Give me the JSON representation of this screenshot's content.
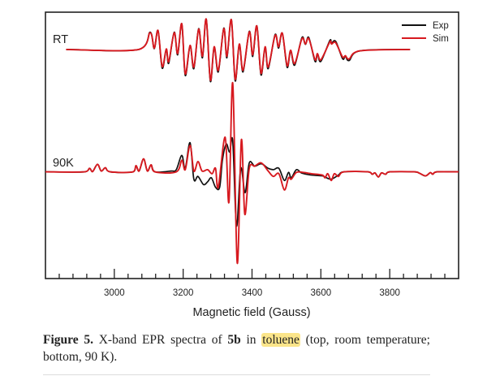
{
  "chart_data": {
    "type": "line",
    "title": "",
    "xlabel": "Magnetic field (Gauss)",
    "ylabel": "",
    "xlim": [
      2800,
      4000
    ],
    "ylim": [
      -3.95,
      5.91
    ],
    "xticks": [
      3000,
      3200,
      3400,
      3600,
      3800
    ],
    "minor_tick_step": 40,
    "minor_tick_start": 2840,
    "grid": false,
    "legend": {
      "placement": "top-right",
      "entries": [
        {
          "name": "Exp",
          "color": "#111111"
        },
        {
          "name": "Sim",
          "color": "#d7191f"
        }
      ]
    },
    "annotations": [
      {
        "text": "RT",
        "x": 2822,
        "y": 5.0
      },
      {
        "text": "90K",
        "x": 2822,
        "y": 0.45
      }
    ],
    "series": [
      {
        "name": "Exp",
        "trace": "RT",
        "color": "#111111",
        "x": [
          2860,
          3071,
          3104,
          3116,
          3127,
          3139,
          3151,
          3158,
          3174,
          3184,
          3196,
          3206,
          3220,
          3231,
          3245,
          3256,
          3267,
          3279,
          3290,
          3302,
          3318,
          3327,
          3340,
          3351,
          3363,
          3374,
          3392,
          3402,
          3414,
          3426,
          3438,
          3447,
          3467,
          3477,
          3488,
          3502,
          3512,
          3524,
          3545,
          3555,
          3565,
          3583,
          3590,
          3600,
          3626,
          3631,
          3643,
          3663,
          3671,
          3682,
          3714,
          3859
        ],
        "y": [
          4.53,
          4.53,
          5.17,
          4.56,
          5.23,
          3.84,
          4.53,
          4.02,
          5.17,
          4.33,
          5.48,
          3.57,
          4.66,
          3.82,
          5.3,
          4.22,
          5.65,
          3.35,
          4.61,
          3.7,
          5.32,
          4.22,
          5.63,
          3.37,
          4.71,
          3.7,
          5.2,
          4.27,
          5.4,
          3.59,
          4.61,
          3.82,
          5.08,
          4.58,
          5.13,
          3.87,
          4.47,
          3.95,
          4.97,
          4.72,
          4.97,
          4.09,
          4.36,
          4.09,
          4.86,
          4.76,
          4.83,
          4.19,
          4.28,
          4.12,
          4.48,
          4.53
        ]
      },
      {
        "name": "Sim",
        "trace": "RT",
        "color": "#d7191f",
        "x": [
          2860,
          3071,
          3104,
          3116,
          3127,
          3139,
          3151,
          3158,
          3174,
          3184,
          3196,
          3206,
          3220,
          3231,
          3245,
          3256,
          3267,
          3279,
          3290,
          3302,
          3318,
          3327,
          3340,
          3351,
          3363,
          3374,
          3392,
          3402,
          3414,
          3426,
          3438,
          3447,
          3467,
          3477,
          3488,
          3502,
          3512,
          3524,
          3545,
          3555,
          3565,
          3583,
          3590,
          3600,
          3626,
          3631,
          3643,
          3663,
          3671,
          3682,
          3714,
          3859
        ],
        "y": [
          4.53,
          4.53,
          5.15,
          4.58,
          5.23,
          3.9,
          4.55,
          4.08,
          5.15,
          4.38,
          5.48,
          3.63,
          4.68,
          3.88,
          5.28,
          4.28,
          5.65,
          3.4,
          4.63,
          3.76,
          5.3,
          4.28,
          5.63,
          3.43,
          4.73,
          3.76,
          5.18,
          4.33,
          5.4,
          3.65,
          4.63,
          3.88,
          5.05,
          4.63,
          5.13,
          3.93,
          4.5,
          4.01,
          4.93,
          4.73,
          4.93,
          4.15,
          4.38,
          4.15,
          4.81,
          4.73,
          4.78,
          4.25,
          4.3,
          4.18,
          4.48,
          4.53
        ]
      },
      {
        "name": "Exp",
        "trace": "90K",
        "color": "#111111",
        "x": [
          2800,
          2914,
          2928,
          2937,
          2951,
          2962,
          2974,
          2988,
          3055,
          3063,
          3072,
          3085,
          3096,
          3107,
          3118,
          3165,
          3180,
          3196,
          3206,
          3220,
          3231,
          3243,
          3259,
          3271,
          3282,
          3294,
          3306,
          3314,
          3325,
          3335,
          3344,
          3355,
          3367,
          3380,
          3392,
          3408,
          3427,
          3447,
          3462,
          3478,
          3494,
          3506,
          3514,
          3529,
          3545,
          3573,
          3604,
          3612,
          3630,
          3651,
          3667,
          3737,
          3749,
          3757,
          3767,
          3776,
          3788,
          3800,
          3871,
          3886,
          3904,
          3918,
          3925,
          3937,
          4000
        ],
        "y": [
          0,
          0,
          0.13,
          0.01,
          0.28,
          0.03,
          0.15,
          0,
          0,
          0.23,
          0.03,
          0.48,
          0.03,
          0.26,
          0,
          0.03,
          0.08,
          0.61,
          0.13,
          1.08,
          -0.27,
          -0.17,
          -0.47,
          -0.37,
          -0.22,
          -0.57,
          -0.57,
          0.43,
          1.03,
          0.73,
          1.13,
          -2.0,
          0.13,
          -0.77,
          0.33,
          0.21,
          0.3,
          0.13,
          0.08,
          0.13,
          -0.32,
          -0.02,
          -0.22,
          0.08,
          -0.05,
          -0.12,
          -0.15,
          -0.19,
          -0.27,
          -0.12,
          0,
          0,
          -0.09,
          -0.04,
          -0.19,
          -0.04,
          -0.09,
          0,
          0,
          -0.05,
          -0.15,
          -0.03,
          -0.09,
          0,
          0
        ]
      },
      {
        "name": "Sim",
        "trace": "90K",
        "color": "#d7191f",
        "x": [
          2800,
          2914,
          2928,
          2937,
          2951,
          2962,
          2974,
          2988,
          3055,
          3063,
          3072,
          3085,
          3096,
          3107,
          3118,
          3180,
          3196,
          3206,
          3220,
          3231,
          3243,
          3255,
          3271,
          3284,
          3294,
          3302,
          3322,
          3333,
          3344,
          3357,
          3369,
          3379,
          3392,
          3408,
          3427,
          3447,
          3462,
          3478,
          3494,
          3506,
          3514,
          3529,
          3549,
          3573,
          3604,
          3612,
          3620,
          3630,
          3639,
          3651,
          3667,
          3737,
          3749,
          3757,
          3767,
          3776,
          3788,
          3800,
          3871,
          3886,
          3904,
          3918,
          3925,
          3937,
          4000
        ],
        "y": [
          0,
          0,
          0.13,
          0.01,
          0.28,
          0.03,
          0.15,
          0,
          0,
          0.23,
          0.03,
          0.48,
          0.03,
          0.26,
          0,
          0,
          0.43,
          0.08,
          0.98,
          0.03,
          0.38,
          0.03,
          0.08,
          -0.07,
          0.13,
          -0.57,
          1.28,
          -1.12,
          3.28,
          -3.37,
          1.18,
          -1.57,
          0.13,
          0.21,
          0.33,
          0.03,
          -0.17,
          -0.07,
          -0.67,
          -0.22,
          -0.27,
          -0.02,
          -0.02,
          -0.07,
          -0.12,
          -0.22,
          -0.07,
          -0.32,
          -0.07,
          -0.17,
          0,
          0,
          -0.09,
          -0.04,
          -0.19,
          -0.04,
          -0.09,
          0,
          0,
          -0.05,
          -0.15,
          -0.03,
          -0.09,
          0,
          0
        ]
      }
    ]
  },
  "caption": {
    "label": "Figure 5.",
    "text1": " X-band EPR spectra of ",
    "compound": "5b",
    "text2": " in ",
    "highlight": "toluene",
    "text3": " (top, room temperature; bottom, 90 K)."
  }
}
